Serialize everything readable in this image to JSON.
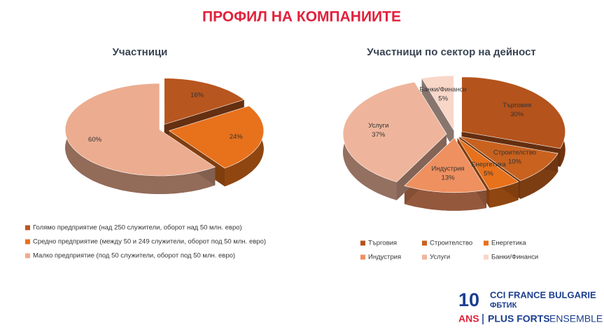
{
  "page_title": "ПРОФИЛ НА КОМПАНИИТЕ",
  "chart_data": [
    {
      "type": "pie",
      "title": "Участници",
      "categories": [
        "Голямо предприятие (над 250 служители, оборот над 50 млн. евро)",
        "Средно предприятие (между 50 и 249 служители, оборот под 50 млн. евро)",
        "Малко предприятие (под 50 служители, оборот под 50 млн. евро)"
      ],
      "values": [
        16,
        24,
        60
      ],
      "value_labels": [
        "16%",
        "24%",
        "60%"
      ],
      "colors": [
        "#b8561f",
        "#e8711c",
        "#ecac90"
      ],
      "legend": "bottom-left"
    },
    {
      "type": "pie",
      "title": "Участници по сектор на дейност",
      "categories": [
        "Търговия",
        "Строителство",
        "Енергетика",
        "Индустрия",
        "Услуги",
        "Банки/Финанси"
      ],
      "values": [
        30,
        10,
        5,
        13,
        37,
        5
      ],
      "value_labels": [
        "30%",
        "10%",
        "5%",
        "13%",
        "37%",
        "5%"
      ],
      "colors": [
        "#b5531c",
        "#c9621f",
        "#e8711c",
        "#ef9060",
        "#efb59c",
        "#f8d6c8"
      ],
      "legend": "bottom"
    }
  ],
  "logo": {
    "number": "10",
    "line1": "CCI FRANCE BULGARIE",
    "line2": "ФБТИК",
    "ans": "ANS",
    "tagline1": "PLUS FORTS",
    "tagline2": "ENSEMBLE"
  }
}
